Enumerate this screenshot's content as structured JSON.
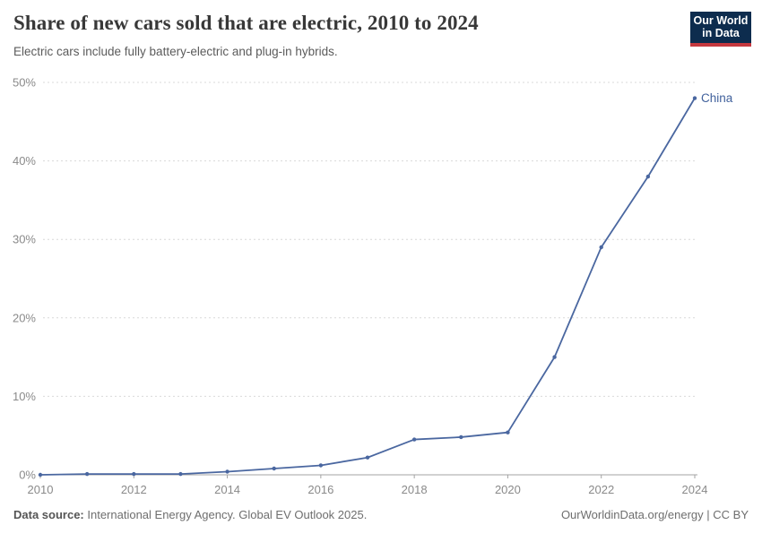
{
  "header": {
    "title": "Share of new cars sold that are electric, 2010 to 2024",
    "subtitle": "Electric cars include fully battery-electric and plug-in hybrids.",
    "logo": {
      "line1": "Our World",
      "line2": "in Data"
    }
  },
  "chart_data": {
    "type": "line",
    "title": "Share of new cars sold that are electric, 2010 to 2024",
    "xlabel": "",
    "ylabel": "",
    "xlim": [
      2010,
      2024
    ],
    "ylim": [
      0,
      50
    ],
    "grid": "horizontal-dashed",
    "legend_position": "end-of-line-label",
    "x_tick_labels": [
      2010,
      2012,
      2014,
      2016,
      2018,
      2020,
      2022,
      2024
    ],
    "y_tick_labels": [
      "0%",
      "10%",
      "20%",
      "30%",
      "40%",
      "50%"
    ],
    "y_tick_values": [
      0,
      10,
      20,
      30,
      40,
      50
    ],
    "x": [
      2010,
      2011,
      2012,
      2013,
      2014,
      2015,
      2016,
      2017,
      2018,
      2019,
      2020,
      2021,
      2022,
      2023,
      2024
    ],
    "series": [
      {
        "name": "China",
        "color": "#4a67a0",
        "values": [
          0,
          0.1,
          0.1,
          0.1,
          0.4,
          0.8,
          1.2,
          2.2,
          4.5,
          4.8,
          5.4,
          15,
          29,
          38,
          48
        ]
      }
    ]
  },
  "footer": {
    "source_label": "Data source:",
    "source_text": " International Energy Agency. Global EV Outlook 2025.",
    "credit": "OurWorldinData.org/energy | CC BY"
  },
  "colors": {
    "line": "#4a67a0",
    "series_label": "#41619c",
    "title": "#383838",
    "subtitle": "#5b5b5b",
    "axis_label": "#8a8a8a",
    "gridline": "#d9d9d9",
    "axis_line": "#a3a3a3",
    "logo_bg": "#0d2c4e",
    "logo_accent": "#c5383f"
  }
}
